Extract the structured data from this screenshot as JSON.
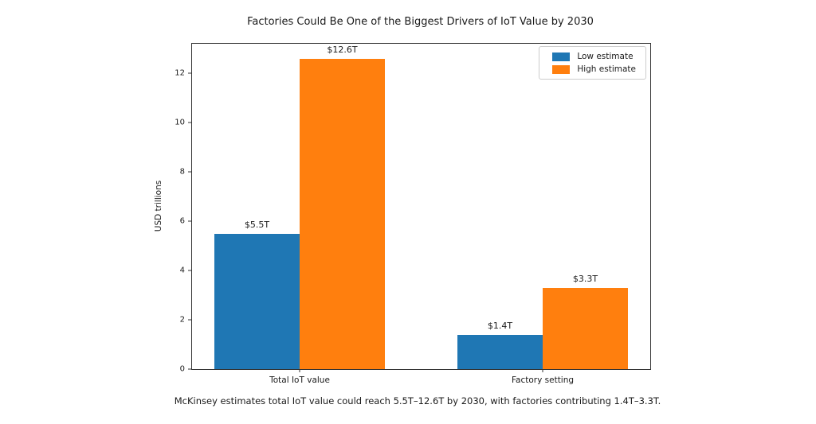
{
  "chart_data": {
    "type": "bar",
    "title": "Factories Could Be One of the Biggest Drivers of IoT Value by 2030",
    "categories": [
      "Total IoT value",
      "Factory setting"
    ],
    "series": [
      {
        "name": "Low estimate",
        "color": "#1f77b4",
        "values": [
          5.5,
          1.4
        ],
        "value_labels": [
          "$5.5T",
          "$1.4T"
        ]
      },
      {
        "name": "High estimate",
        "color": "#ff7f0e",
        "values": [
          12.6,
          3.3
        ],
        "value_labels": [
          "$12.6T",
          "$3.3T"
        ]
      }
    ],
    "xlabel": "",
    "ylabel": "USD trillions",
    "yticks": [
      0,
      2,
      4,
      6,
      8,
      10,
      12
    ],
    "ylim": [
      0,
      13.2
    ],
    "grid": false,
    "legend_position": "upper right",
    "caption": "McKinsey estimates total IoT value could reach 5.5T–12.6T by 2030, with factories contributing 1.4T–3.3T."
  }
}
